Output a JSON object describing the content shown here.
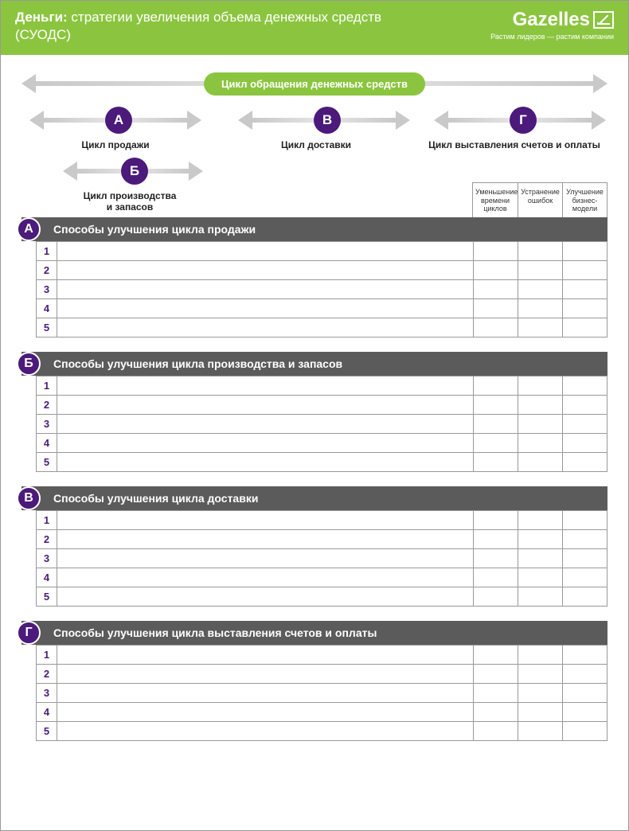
{
  "colors": {
    "accent_green": "#8bc53f",
    "accent_purple": "#4b1a7a",
    "header_grey": "#5b5b5b",
    "arrow_grey": "#c9c9c9",
    "border_grey": "#999999",
    "text": "#222222",
    "white": "#ffffff"
  },
  "header": {
    "title_bold": "Деньги:",
    "title_rest": " стратегии увеличения объема денежных средств (СУОДС)",
    "logo_name": "Gazelles",
    "logo_tagline": "Растим лидеров — растим компании"
  },
  "diagram": {
    "main_pill": "Цикл обращения денежных средств",
    "cycles": [
      {
        "letter": "А",
        "label": "Цикл продажи"
      },
      {
        "letter": "В",
        "label": "Цикл доставки"
      },
      {
        "letter": "Г",
        "label": "Цикл выставления счетов и оплаты"
      }
    ],
    "sub_cycle": {
      "letter": "Б",
      "label": "Цикл производства\nи запасов"
    }
  },
  "column_headers": [
    "Уменьшение времени циклов",
    "Устранение ошибок",
    "Улучшение бизнес-модели"
  ],
  "sections": [
    {
      "letter": "А",
      "title": "Способы улучшения цикла продажи",
      "rows": 5
    },
    {
      "letter": "Б",
      "title": "Способы улучшения цикла производства и запасов",
      "rows": 5
    },
    {
      "letter": "В",
      "title": "Способы улучшения цикла доставки",
      "rows": 5
    },
    {
      "letter": "Г",
      "title": "Способы улучшения цикла выставления счетов и оплаты",
      "rows": 5
    }
  ]
}
